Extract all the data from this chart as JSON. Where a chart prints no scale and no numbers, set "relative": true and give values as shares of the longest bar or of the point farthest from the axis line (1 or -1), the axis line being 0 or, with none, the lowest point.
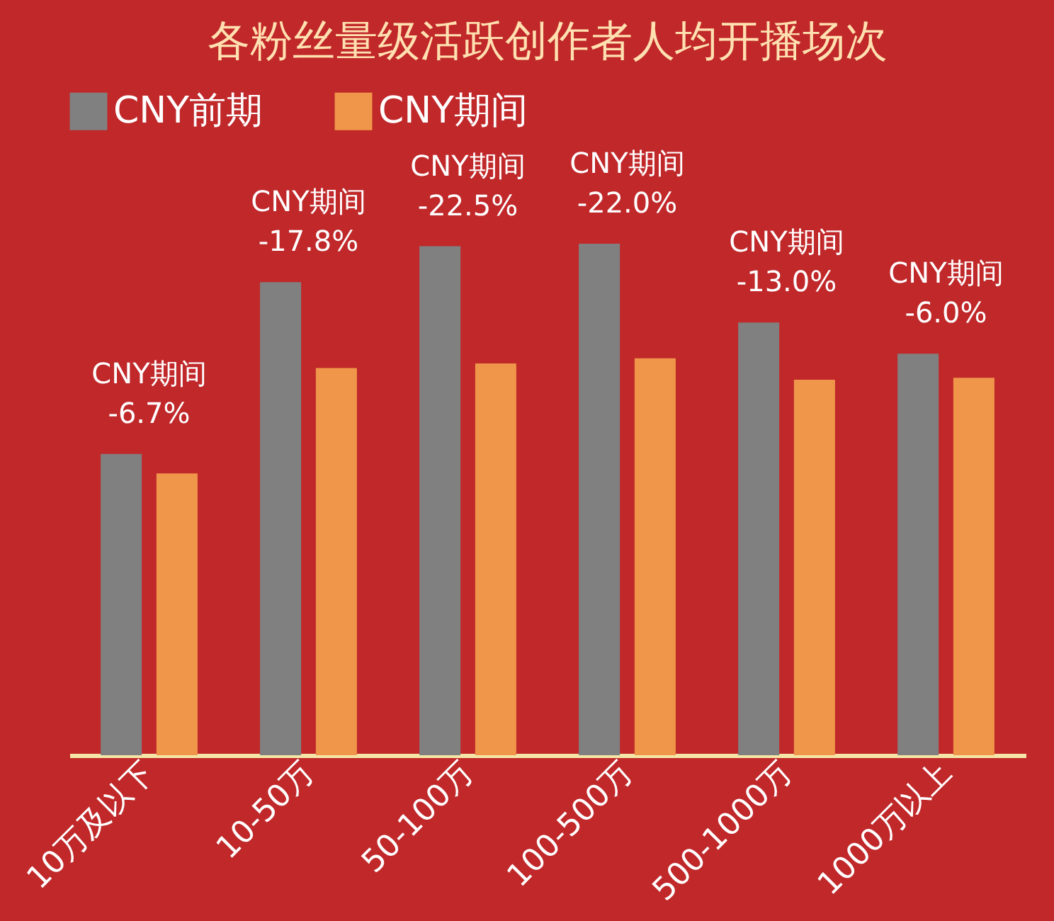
{
  "chart_data": {
    "type": "bar",
    "title": "各粉丝量级活跃创作者人均开播场次",
    "relative": true,
    "legend": "top",
    "grid": false,
    "categories": [
      "10万及以下",
      "10-50万",
      "50-100万",
      "100-500万",
      "500-1000万",
      "1000万以上"
    ],
    "series": [
      {
        "name": "CNY前期",
        "color": "#808080",
        "values": [
          0.589,
          0.925,
          0.995,
          1.0,
          0.846,
          0.785
        ]
      },
      {
        "name": "CNY期间",
        "color": "#f0964a",
        "values": [
          0.551,
          0.757,
          0.766,
          0.776,
          0.734,
          0.738
        ]
      }
    ],
    "annotations": [
      "CNY期间\n-6.7%",
      "CNY期间\n-17.8%",
      "CNY期间\n-22.5%",
      "CNY期间\n-22.0%",
      "CNY期间\n-13.0%",
      "CNY期间\n-6.0%"
    ]
  }
}
